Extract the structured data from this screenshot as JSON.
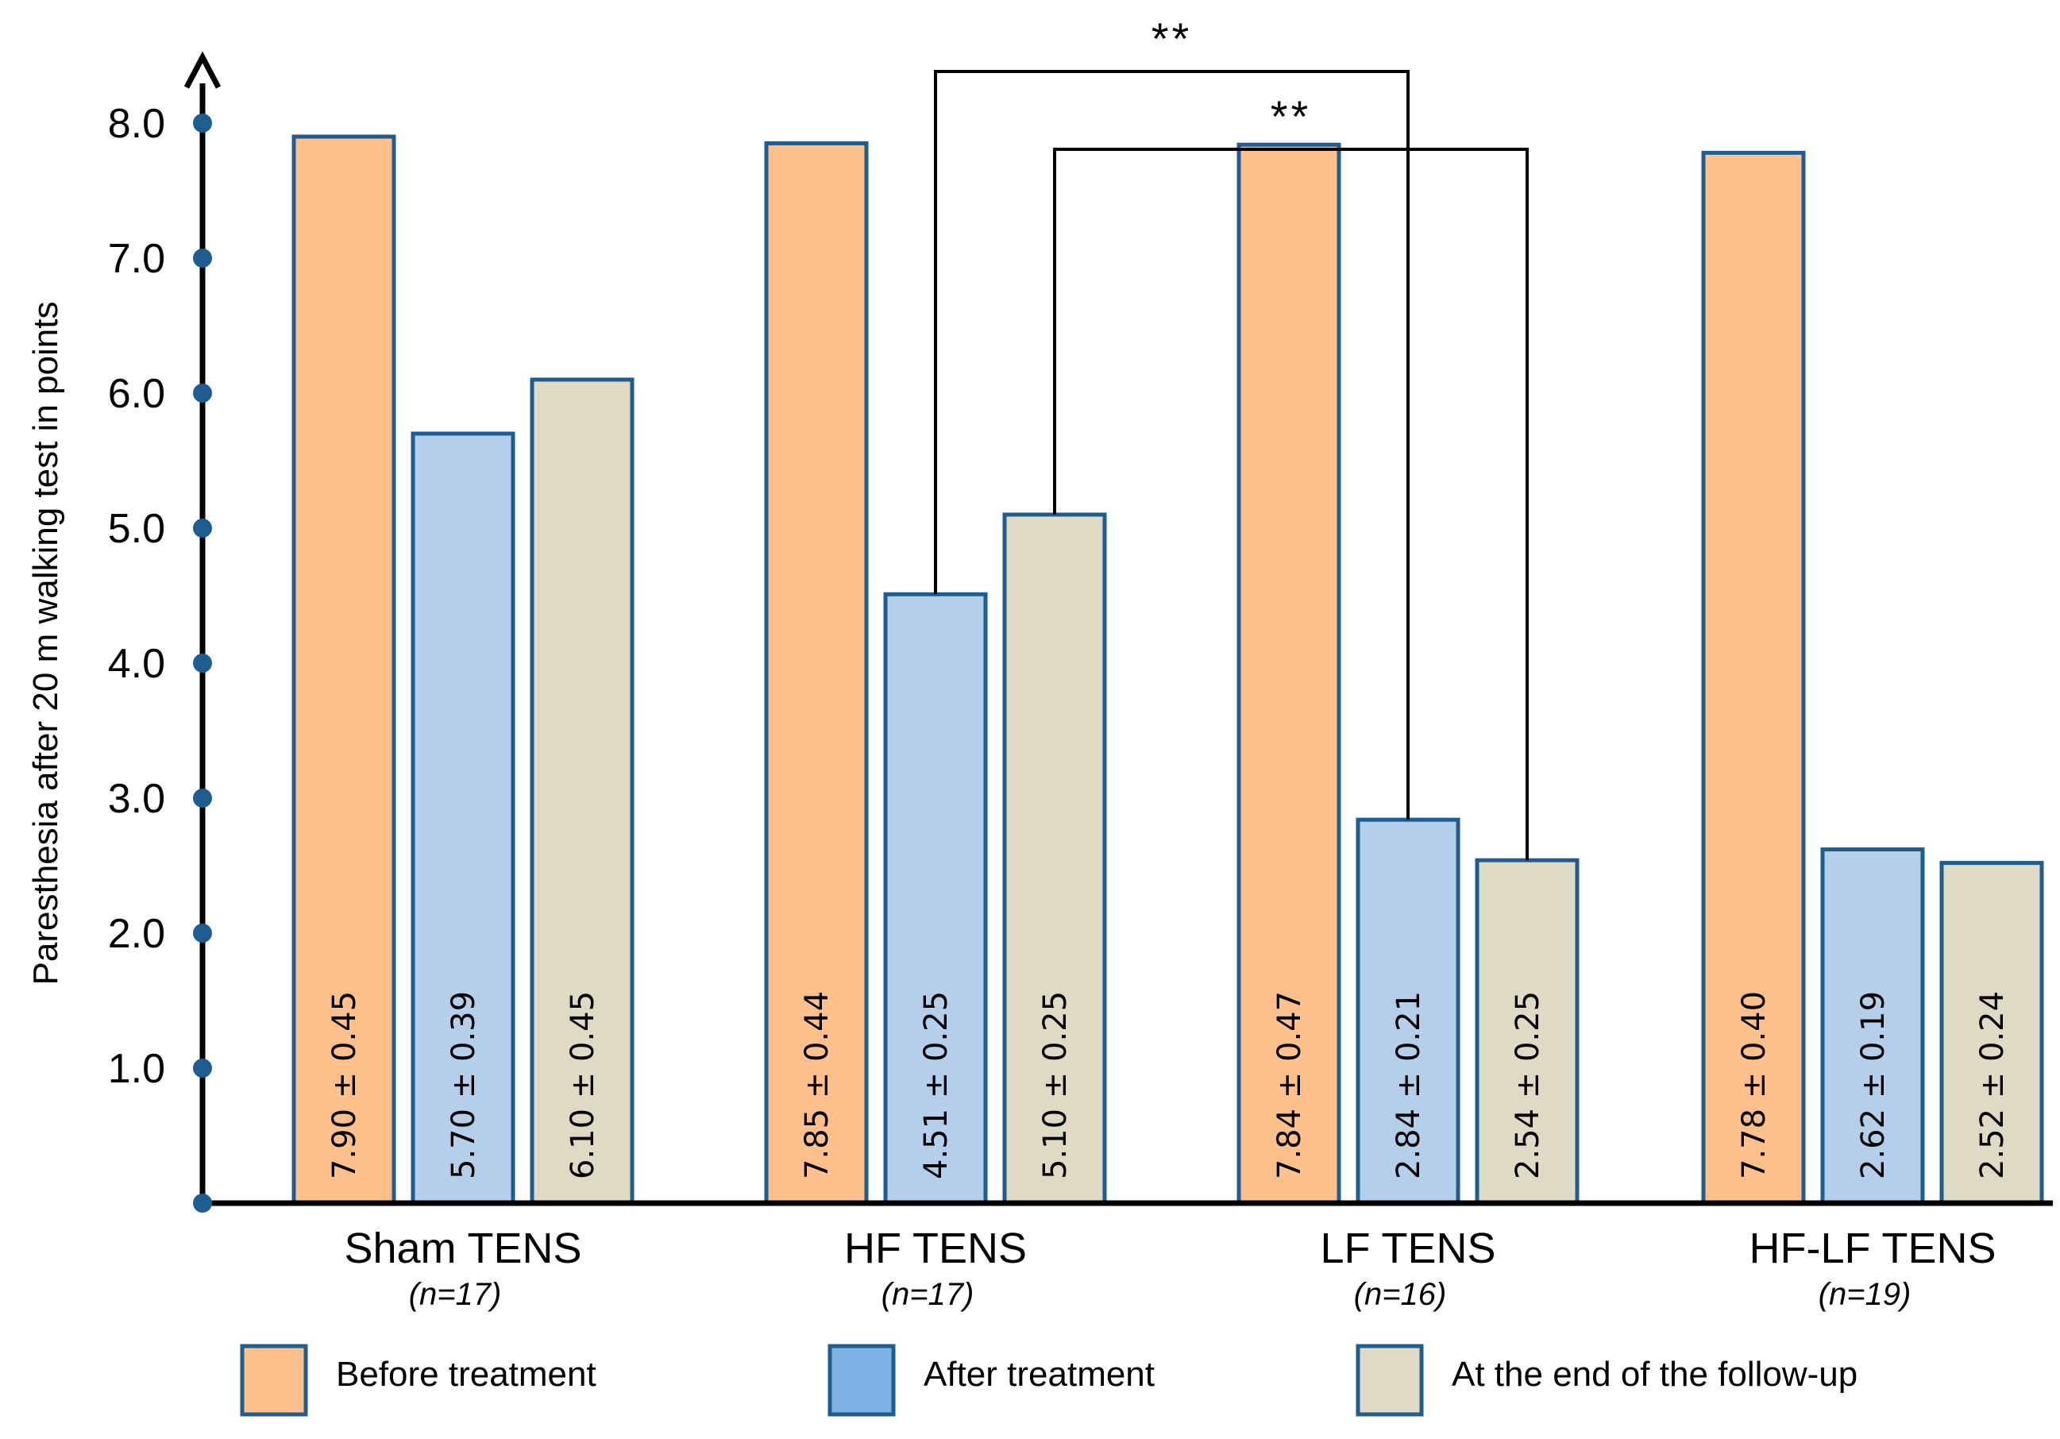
{
  "chart_data": {
    "type": "bar",
    "title": "",
    "xlabel": "",
    "ylabel": "Paresthesia  after 20 m walking test  in points",
    "ylim": [
      0,
      8.0
    ],
    "yticks": [
      "1.0",
      "2.0",
      "3.0",
      "4.0",
      "5.0",
      "6.0",
      "7.0",
      "8.0"
    ],
    "grid": false,
    "legend_position": "bottom",
    "categories": [
      "Sham TENS",
      "HF TENS",
      "LF TENS",
      "HF-LF TENS"
    ],
    "category_n": [
      "(n=17)",
      "(n=17)",
      "(n=16)",
      "(n=19)"
    ],
    "series": [
      {
        "name": "Before treatment",
        "color": "#FFC08C",
        "values": [
          7.9,
          7.85,
          7.84,
          7.78
        ],
        "labels": [
          "7.90 ± 0.45",
          "7.85 ± 0.44",
          "7.84 ± 0.47",
          "7.78 ± 0.40"
        ]
      },
      {
        "name": "After treatment",
        "color": "#B4CFE9",
        "values": [
          5.7,
          4.51,
          2.84,
          2.62
        ],
        "labels": [
          "5.70 ± 0.39",
          "4.51 ± 0.25",
          "2.84 ± 0.21",
          "2.62 ± 0.19"
        ]
      },
      {
        "name": "At the end of the follow-up",
        "color": "#DFDAC4",
        "values": [
          6.1,
          5.1,
          2.54,
          2.52
        ],
        "labels": [
          "6.10 ± 0.45",
          "5.10 ± 0.25",
          "2.54 ± 0.25",
          "2.52 ± 0.24"
        ]
      }
    ],
    "legend_swatch_colors": [
      "#FFC08C",
      "#7EB2E4",
      "#DFDAC4"
    ],
    "bar_edge_color": "#1F5C8F",
    "significance": [
      {
        "label": "**",
        "from": {
          "category": 1,
          "series": 1
        },
        "to": {
          "category": 2,
          "series": 1
        }
      },
      {
        "label": "**",
        "from": {
          "category": 1,
          "series": 2
        },
        "to": {
          "category": 2,
          "series": 2
        }
      }
    ]
  }
}
